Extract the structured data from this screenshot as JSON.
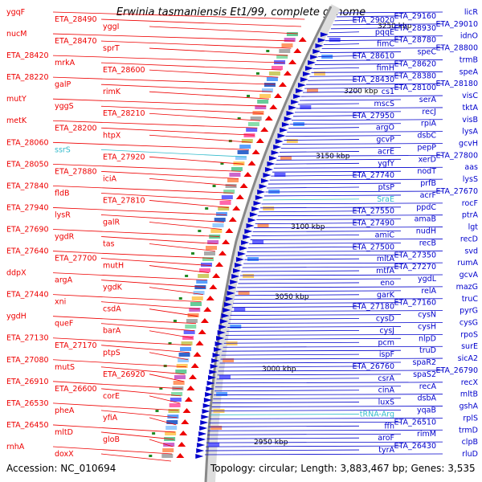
{
  "title": "Erwinia tasmaniensis Et1/99, complete genome",
  "footer": {
    "accession": "Accession: NC_010694",
    "summary": "Topology: circular; Length: 3,883,467 bp; Genes: 3,535"
  },
  "colors": {
    "left_genes": "#ee0000",
    "right_genes": "#0000cc",
    "rna_genes": "#33bbcc",
    "backbone": "#888888"
  },
  "kbp_labels": [
    "3250 kbp",
    "3200 kbp",
    "3150 kbp",
    "3100 kbp",
    "3050 kbp",
    "3000 kbp",
    "2950 kbp"
  ],
  "left_genes": [
    "ygqF",
    "ETA_28490",
    "yggI",
    "nucM",
    "ETA_28470",
    "sprT",
    "ETA_28420",
    "mrkA",
    "ETA_28600",
    "ETA_28220",
    "galP",
    "rimK",
    "mutY",
    "yggS",
    "ETA_28210",
    "metK",
    "ETA_28200",
    "htpX",
    "ETA_28060",
    "ssrS",
    "ETA_27920",
    "ETA_28050",
    "ETA_27880",
    "iciA",
    "ETA_27840",
    "fldB",
    "ETA_27810",
    "ETA_27940",
    "lysR",
    "galR",
    "ETA_27690",
    "ygdR",
    "tas",
    "ETA_27640",
    "ETA_27700",
    "mutH",
    "ddpX",
    "argA",
    "ygdK",
    "ETA_27440",
    "xni",
    "csdA",
    "ygdH",
    "queF",
    "barA",
    "ETA_27130",
    "ETA_27170",
    "ptpS",
    "ETA_27080",
    "mutS",
    "ETA_26920",
    "ETA_26910",
    "ETA_26600",
    "corE",
    "ETA_26530",
    "pheA",
    "yfiA",
    "ETA_26450",
    "mltD",
    "gloB",
    "rnhA",
    "doxX"
  ],
  "right_genes": [
    "licR",
    "ETA_29160",
    "ETA_29020",
    "ETA_29010",
    "ETA_28930",
    "pqqE",
    "idnO",
    "ETA_28780",
    "fimC",
    "ETA_28800",
    "speC",
    "ETA_28610",
    "trmB",
    "ETA_28620",
    "fimH",
    "speA",
    "ETA_28380",
    "ETA_28430",
    "ETA_28180",
    "ETA_28100",
    "cs1",
    "visC",
    "serA",
    "mscS",
    "tktA",
    "recJ",
    "ETA_27950",
    "visB",
    "rpiA",
    "argO",
    "lysA",
    "dsbC",
    "gcvP",
    "gcvH",
    "pepP",
    "acrE",
    "ETA_27800",
    "xerD",
    "ygfY",
    "aas",
    "nodT",
    "ETA_27740",
    "lysS",
    "prfB",
    "ptsP",
    "ETA_27670",
    "acrF",
    "SraE",
    "rocF",
    "ppdC",
    "ETA_27550",
    "ptrA",
    "amaB",
    "ETA_27490",
    "lgt",
    "nudH",
    "amiC",
    "recD",
    "recB",
    "ETA_27500",
    "svd",
    "ETA_27350",
    "mltA",
    "rumA",
    "ETA_27270",
    "mtfA",
    "gcvA",
    "ygdL",
    "eno",
    "mazG",
    "relA",
    "garK",
    "truC",
    "ETA_27160",
    "ETA_27180",
    "pyrG",
    "cysN",
    "cysD",
    "cysG",
    "cysH",
    "cysJ",
    "rpoS",
    "nlpD",
    "pcm",
    "surE",
    "truD",
    "ispF",
    "sicA2",
    "spaR2",
    "ETA_26760",
    "ETA_26790",
    "spaS2",
    "csrA",
    "recX",
    "recA",
    "cinA",
    "mltB",
    "dsbA",
    "luxS",
    "gshA",
    "yqaB",
    "tRNA-Arg",
    "rplS",
    "ETA_26510",
    "ffh",
    "trmD",
    "rimM",
    "aroF",
    "clpB",
    "ETA_26430",
    "tyrA",
    "rluD"
  ]
}
